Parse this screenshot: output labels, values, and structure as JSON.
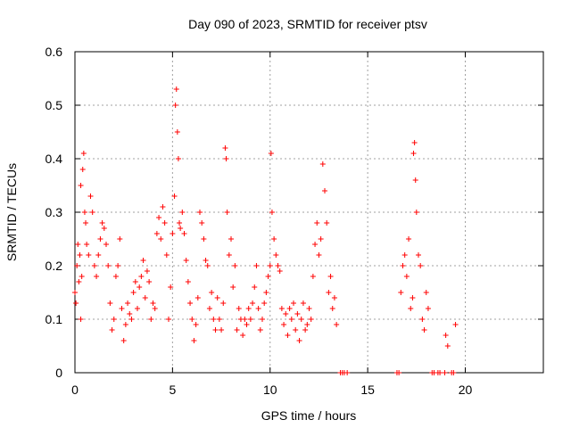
{
  "chart_data": {
    "type": "scatter",
    "title": "Day 090 of 2023, SRMTID for receiver ptsv",
    "xlabel": "GPS time / hours",
    "ylabel": "SRMTID / TECUs",
    "xlim": [
      0,
      24
    ],
    "ylim": [
      0,
      0.6
    ],
    "x_ticks": [
      0,
      5,
      10,
      15,
      20
    ],
    "y_ticks": [
      0,
      0.1,
      0.2,
      0.3,
      0.4,
      0.5,
      0.6
    ],
    "x_tick_labels": [
      "0",
      "5",
      "10",
      "15",
      "20"
    ],
    "y_tick_labels": [
      "0",
      "0.1",
      "0.2",
      "0.3",
      "0.4",
      "0.5",
      "0.6"
    ],
    "grid": true,
    "marker": "+",
    "color": "#ff0000",
    "series": [
      {
        "name": "SRMTID",
        "points": [
          [
            0.0,
            0.15
          ],
          [
            0.05,
            0.13
          ],
          [
            0.1,
            0.2
          ],
          [
            0.15,
            0.24
          ],
          [
            0.2,
            0.17
          ],
          [
            0.25,
            0.22
          ],
          [
            0.3,
            0.1
          ],
          [
            0.3,
            0.35
          ],
          [
            0.35,
            0.18
          ],
          [
            0.4,
            0.38
          ],
          [
            0.45,
            0.41
          ],
          [
            0.5,
            0.3
          ],
          [
            0.55,
            0.28
          ],
          [
            0.6,
            0.24
          ],
          [
            0.7,
            0.22
          ],
          [
            0.8,
            0.33
          ],
          [
            0.9,
            0.3
          ],
          [
            1.0,
            0.2
          ],
          [
            1.1,
            0.18
          ],
          [
            1.2,
            0.22
          ],
          [
            1.3,
            0.25
          ],
          [
            1.4,
            0.28
          ],
          [
            1.5,
            0.27
          ],
          [
            1.6,
            0.24
          ],
          [
            1.7,
            0.2
          ],
          [
            1.8,
            0.13
          ],
          [
            1.9,
            0.08
          ],
          [
            2.0,
            0.1
          ],
          [
            2.1,
            0.18
          ],
          [
            2.2,
            0.2
          ],
          [
            2.3,
            0.25
          ],
          [
            2.4,
            0.12
          ],
          [
            2.5,
            0.06
          ],
          [
            2.6,
            0.09
          ],
          [
            2.7,
            0.13
          ],
          [
            2.8,
            0.11
          ],
          [
            2.9,
            0.1
          ],
          [
            3.0,
            0.15
          ],
          [
            3.1,
            0.17
          ],
          [
            3.2,
            0.12
          ],
          [
            3.3,
            0.16
          ],
          [
            3.4,
            0.18
          ],
          [
            3.5,
            0.21
          ],
          [
            3.6,
            0.14
          ],
          [
            3.7,
            0.19
          ],
          [
            3.8,
            0.17
          ],
          [
            3.9,
            0.1
          ],
          [
            4.0,
            0.13
          ],
          [
            4.1,
            0.12
          ],
          [
            4.2,
            0.26
          ],
          [
            4.3,
            0.29
          ],
          [
            4.4,
            0.25
          ],
          [
            4.5,
            0.31
          ],
          [
            4.6,
            0.28
          ],
          [
            4.7,
            0.22
          ],
          [
            4.8,
            0.1
          ],
          [
            4.9,
            0.16
          ],
          [
            5.0,
            0.26
          ],
          [
            5.1,
            0.33
          ],
          [
            5.15,
            0.5
          ],
          [
            5.2,
            0.53
          ],
          [
            5.25,
            0.45
          ],
          [
            5.3,
            0.4
          ],
          [
            5.35,
            0.28
          ],
          [
            5.4,
            0.27
          ],
          [
            5.5,
            0.3
          ],
          [
            5.6,
            0.26
          ],
          [
            5.7,
            0.21
          ],
          [
            5.8,
            0.17
          ],
          [
            5.9,
            0.13
          ],
          [
            6.0,
            0.1
          ],
          [
            6.1,
            0.06
          ],
          [
            6.2,
            0.09
          ],
          [
            6.3,
            0.14
          ],
          [
            6.4,
            0.3
          ],
          [
            6.5,
            0.28
          ],
          [
            6.6,
            0.25
          ],
          [
            6.7,
            0.21
          ],
          [
            6.8,
            0.2
          ],
          [
            6.9,
            0.12
          ],
          [
            7.0,
            0.15
          ],
          [
            7.1,
            0.1
          ],
          [
            7.2,
            0.08
          ],
          [
            7.3,
            0.14
          ],
          [
            7.4,
            0.1
          ],
          [
            7.5,
            0.08
          ],
          [
            7.6,
            0.13
          ],
          [
            7.7,
            0.42
          ],
          [
            7.75,
            0.4
          ],
          [
            7.8,
            0.3
          ],
          [
            7.9,
            0.22
          ],
          [
            8.0,
            0.25
          ],
          [
            8.1,
            0.16
          ],
          [
            8.2,
            0.2
          ],
          [
            8.3,
            0.08
          ],
          [
            8.4,
            0.12
          ],
          [
            8.5,
            0.1
          ],
          [
            8.6,
            0.07
          ],
          [
            8.7,
            0.1
          ],
          [
            8.8,
            0.09
          ],
          [
            8.9,
            0.12
          ],
          [
            9.0,
            0.1
          ],
          [
            9.1,
            0.13
          ],
          [
            9.2,
            0.16
          ],
          [
            9.3,
            0.2
          ],
          [
            9.4,
            0.12
          ],
          [
            9.5,
            0.08
          ],
          [
            9.6,
            0.1
          ],
          [
            9.7,
            0.13
          ],
          [
            9.8,
            0.15
          ],
          [
            9.9,
            0.18
          ],
          [
            10.0,
            0.2
          ],
          [
            10.05,
            0.41
          ],
          [
            10.1,
            0.3
          ],
          [
            10.2,
            0.25
          ],
          [
            10.3,
            0.22
          ],
          [
            10.4,
            0.2
          ],
          [
            10.5,
            0.19
          ],
          [
            10.6,
            0.12
          ],
          [
            10.7,
            0.09
          ],
          [
            10.8,
            0.11
          ],
          [
            10.9,
            0.07
          ],
          [
            11.0,
            0.12
          ],
          [
            11.1,
            0.1
          ],
          [
            11.2,
            0.13
          ],
          [
            11.3,
            0.08
          ],
          [
            11.4,
            0.11
          ],
          [
            11.5,
            0.06
          ],
          [
            11.6,
            0.1
          ],
          [
            11.7,
            0.13
          ],
          [
            11.8,
            0.08
          ],
          [
            11.9,
            0.09
          ],
          [
            12.0,
            0.12
          ],
          [
            12.1,
            0.1
          ],
          [
            12.2,
            0.18
          ],
          [
            12.3,
            0.24
          ],
          [
            12.4,
            0.28
          ],
          [
            12.5,
            0.22
          ],
          [
            12.6,
            0.25
          ],
          [
            12.7,
            0.39
          ],
          [
            12.8,
            0.34
          ],
          [
            12.9,
            0.28
          ],
          [
            13.0,
            0.15
          ],
          [
            13.1,
            0.18
          ],
          [
            13.2,
            0.12
          ],
          [
            13.3,
            0.14
          ],
          [
            13.4,
            0.09
          ],
          [
            13.6,
            0.0
          ],
          [
            13.7,
            0.0
          ],
          [
            13.8,
            0.0
          ],
          [
            13.95,
            0.0
          ],
          [
            16.5,
            0.0
          ],
          [
            16.6,
            0.0
          ],
          [
            16.7,
            0.15
          ],
          [
            16.8,
            0.2
          ],
          [
            16.9,
            0.22
          ],
          [
            17.0,
            0.18
          ],
          [
            17.1,
            0.25
          ],
          [
            17.2,
            0.12
          ],
          [
            17.3,
            0.14
          ],
          [
            17.35,
            0.41
          ],
          [
            17.4,
            0.43
          ],
          [
            17.45,
            0.36
          ],
          [
            17.5,
            0.3
          ],
          [
            17.6,
            0.22
          ],
          [
            17.7,
            0.2
          ],
          [
            17.8,
            0.1
          ],
          [
            17.9,
            0.08
          ],
          [
            18.0,
            0.15
          ],
          [
            18.1,
            0.12
          ],
          [
            18.3,
            0.0
          ],
          [
            18.4,
            0.0
          ],
          [
            18.6,
            0.0
          ],
          [
            18.7,
            0.0
          ],
          [
            18.95,
            0.0
          ],
          [
            19.0,
            0.07
          ],
          [
            19.1,
            0.05
          ],
          [
            19.3,
            0.0
          ],
          [
            19.4,
            0.0
          ],
          [
            19.5,
            0.09
          ]
        ]
      }
    ]
  }
}
